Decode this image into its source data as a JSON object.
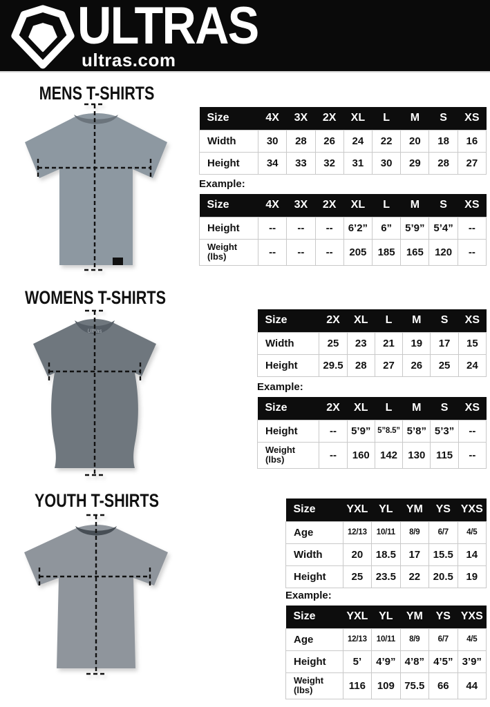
{
  "header": {
    "brand": "ULTRAS",
    "website": "ultras.com"
  },
  "labels": {
    "example": "Example:"
  },
  "colors": {
    "header_bg": "#0a0a0a",
    "table_header_bg": "#0d0d0d",
    "mens_shirt": "#8d98a1",
    "womens_shirt": "#6f777e",
    "youth_shirt": "#8f959c"
  },
  "sections": [
    {
      "id": "mens",
      "title": "MENS T-SHIRTS",
      "shirt_color": "#8d98a1",
      "collar_color": "#6b747c",
      "size_table": {
        "columns": [
          "Size",
          "4X",
          "3X",
          "2X",
          "XL",
          "L",
          "M",
          "S",
          "XS"
        ],
        "rows": [
          {
            "label": "Width",
            "values": [
              "30",
              "28",
              "26",
              "24",
              "22",
              "20",
              "18",
              "16"
            ]
          },
          {
            "label": "Height",
            "values": [
              "34",
              "33",
              "32",
              "31",
              "30",
              "29",
              "28",
              "27"
            ]
          }
        ]
      },
      "example_table": {
        "columns": [
          "Size",
          "4X",
          "3X",
          "2X",
          "XL",
          "L",
          "M",
          "S",
          "XS"
        ],
        "rows": [
          {
            "label": "Height",
            "values": [
              "--",
              "--",
              "--",
              "6’2”",
              "6”",
              "5’9”",
              "5’4”",
              "--"
            ]
          },
          {
            "label": "Weight\n(lbs)",
            "values": [
              "--",
              "--",
              "--",
              "205",
              "185",
              "165",
              "120",
              "--"
            ]
          }
        ]
      }
    },
    {
      "id": "womens",
      "title": "WOMENS T-SHIRTS",
      "shirt_color": "#6f777e",
      "collar_color": "#565e66",
      "size_table": {
        "columns": [
          "Size",
          "2X",
          "XL",
          "L",
          "M",
          "S",
          "XS"
        ],
        "rows": [
          {
            "label": "Width",
            "values": [
              "25",
              "23",
              "21",
              "19",
              "17",
              "15"
            ]
          },
          {
            "label": "Height",
            "values": [
              "29.5",
              "28",
              "27",
              "26",
              "25",
              "24"
            ]
          }
        ]
      },
      "example_table": {
        "columns": [
          "Size",
          "2X",
          "XL",
          "L",
          "M",
          "S",
          "XS"
        ],
        "rows": [
          {
            "label": "Height",
            "values": [
              "--",
              "5’9”",
              "5”8.5”",
              "5’8”",
              "5’3”",
              "--"
            ]
          },
          {
            "label": "Weight\n(lbs)",
            "values": [
              "--",
              "160",
              "142",
              "130",
              "115",
              "--"
            ]
          }
        ]
      }
    },
    {
      "id": "youth",
      "title": "YOUTH T-SHIRTS",
      "shirt_color": "#8f959c",
      "collar_color": "#474e55",
      "size_table": {
        "columns": [
          "Size",
          "YXL",
          "YL",
          "YM",
          "YS",
          "YXS"
        ],
        "rows": [
          {
            "label": "Age",
            "values": [
              "12/13",
              "10/11",
              "8/9",
              "6/7",
              "4/5"
            ]
          },
          {
            "label": "Width",
            "values": [
              "20",
              "18.5",
              "17",
              "15.5",
              "14"
            ]
          },
          {
            "label": "Height",
            "values": [
              "25",
              "23.5",
              "22",
              "20.5",
              "19"
            ]
          }
        ]
      },
      "example_table": {
        "columns": [
          "Size",
          "YXL",
          "YL",
          "YM",
          "YS",
          "YXS"
        ],
        "rows": [
          {
            "label": "Age",
            "values": [
              "12/13",
              "10/11",
              "8/9",
              "6/7",
              "4/5"
            ]
          },
          {
            "label": "Height",
            "values": [
              "5’",
              "4’9”",
              "4’8”",
              "4’5”",
              "3’9”"
            ]
          },
          {
            "label": "Weight\n(lbs)",
            "values": [
              "116",
              "109",
              "75.5",
              "66",
              "44"
            ]
          }
        ]
      }
    }
  ]
}
